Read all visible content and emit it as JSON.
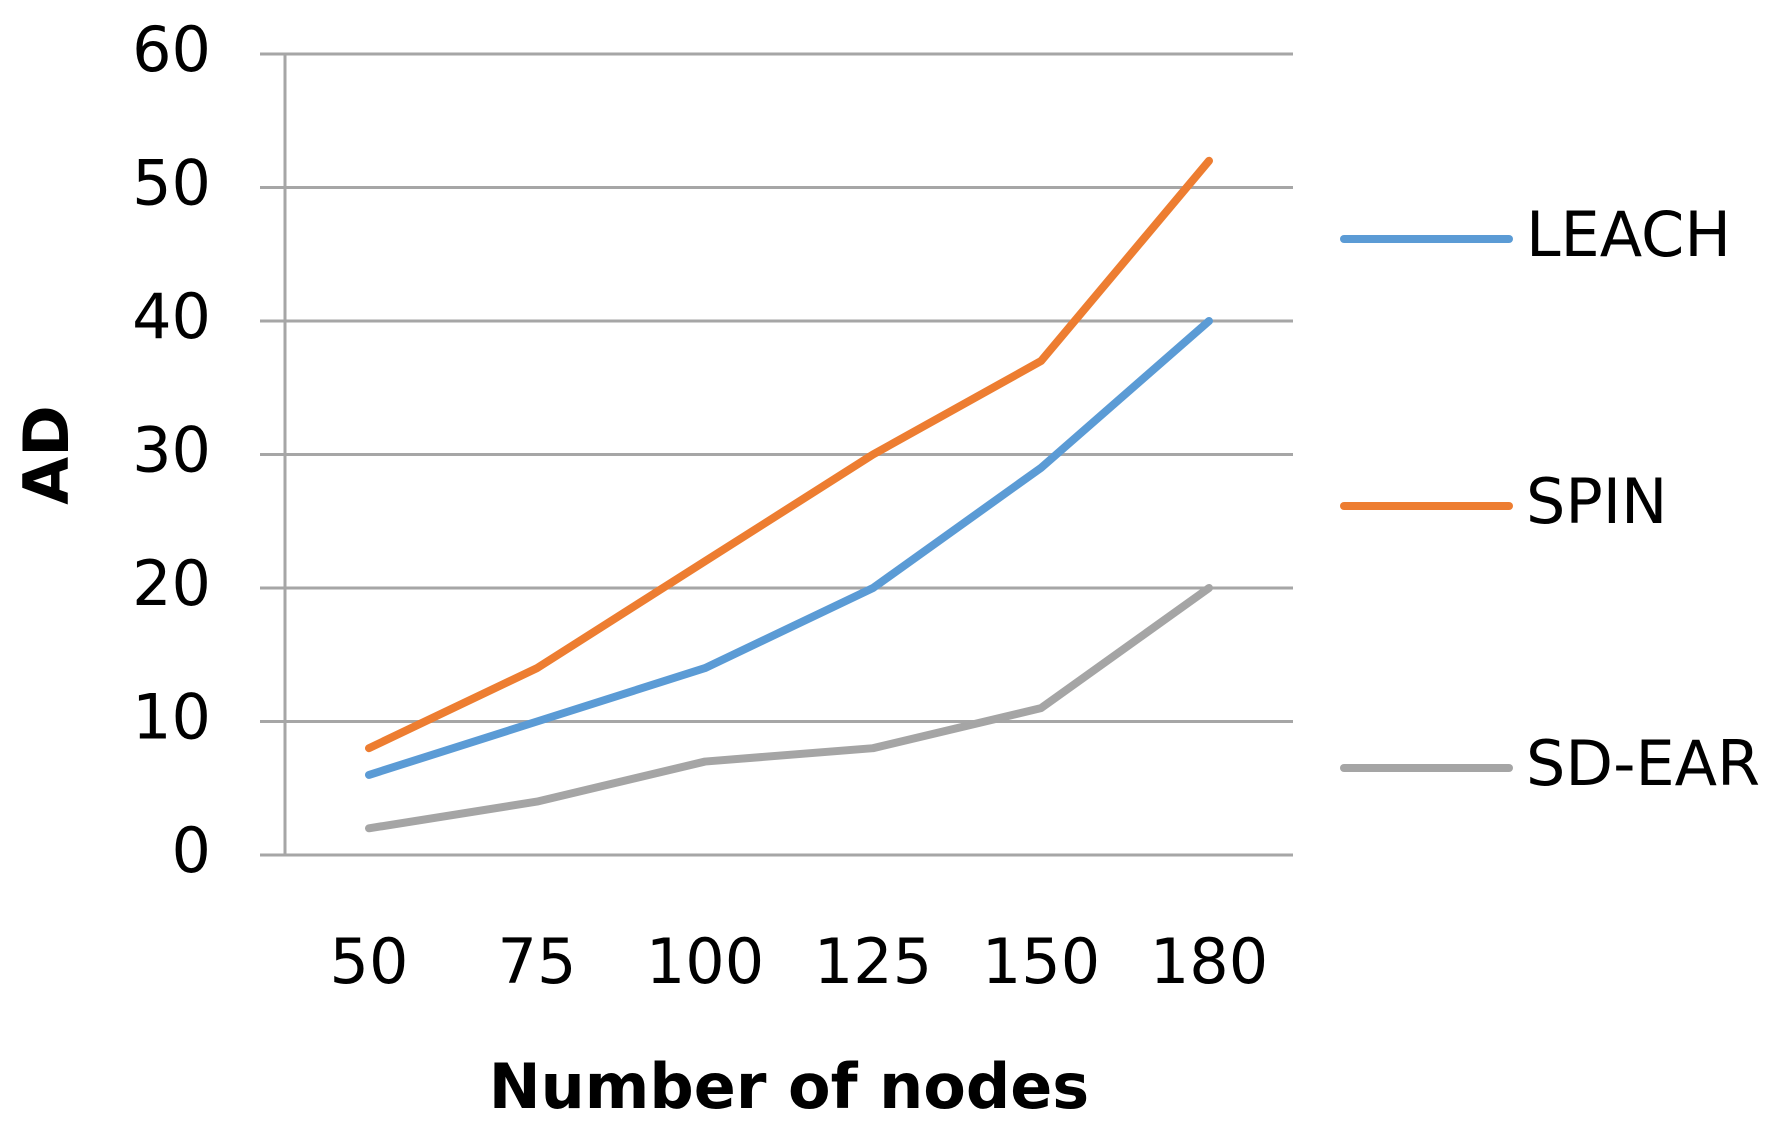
{
  "chart_data": {
    "type": "line",
    "categories": [
      "50",
      "75",
      "100",
      "125",
      "150",
      "180"
    ],
    "series": [
      {
        "name": "LEACH",
        "color": "#5b9bd5",
        "values": [
          6,
          10,
          14,
          20,
          29,
          40
        ]
      },
      {
        "name": "SPIN",
        "color": "#ed7d31",
        "values": [
          8,
          14,
          22,
          30,
          37,
          52
        ]
      },
      {
        "name": "SD-EAR",
        "color": "#a5a5a5",
        "values": [
          2,
          4,
          7,
          8,
          11,
          20
        ]
      }
    ],
    "x_label": "Number of nodes",
    "y_label": "AD",
    "ylim": [
      0,
      60
    ],
    "yticks": [
      0,
      10,
      20,
      30,
      40,
      50,
      60
    ],
    "grid": true,
    "legend": "right"
  }
}
